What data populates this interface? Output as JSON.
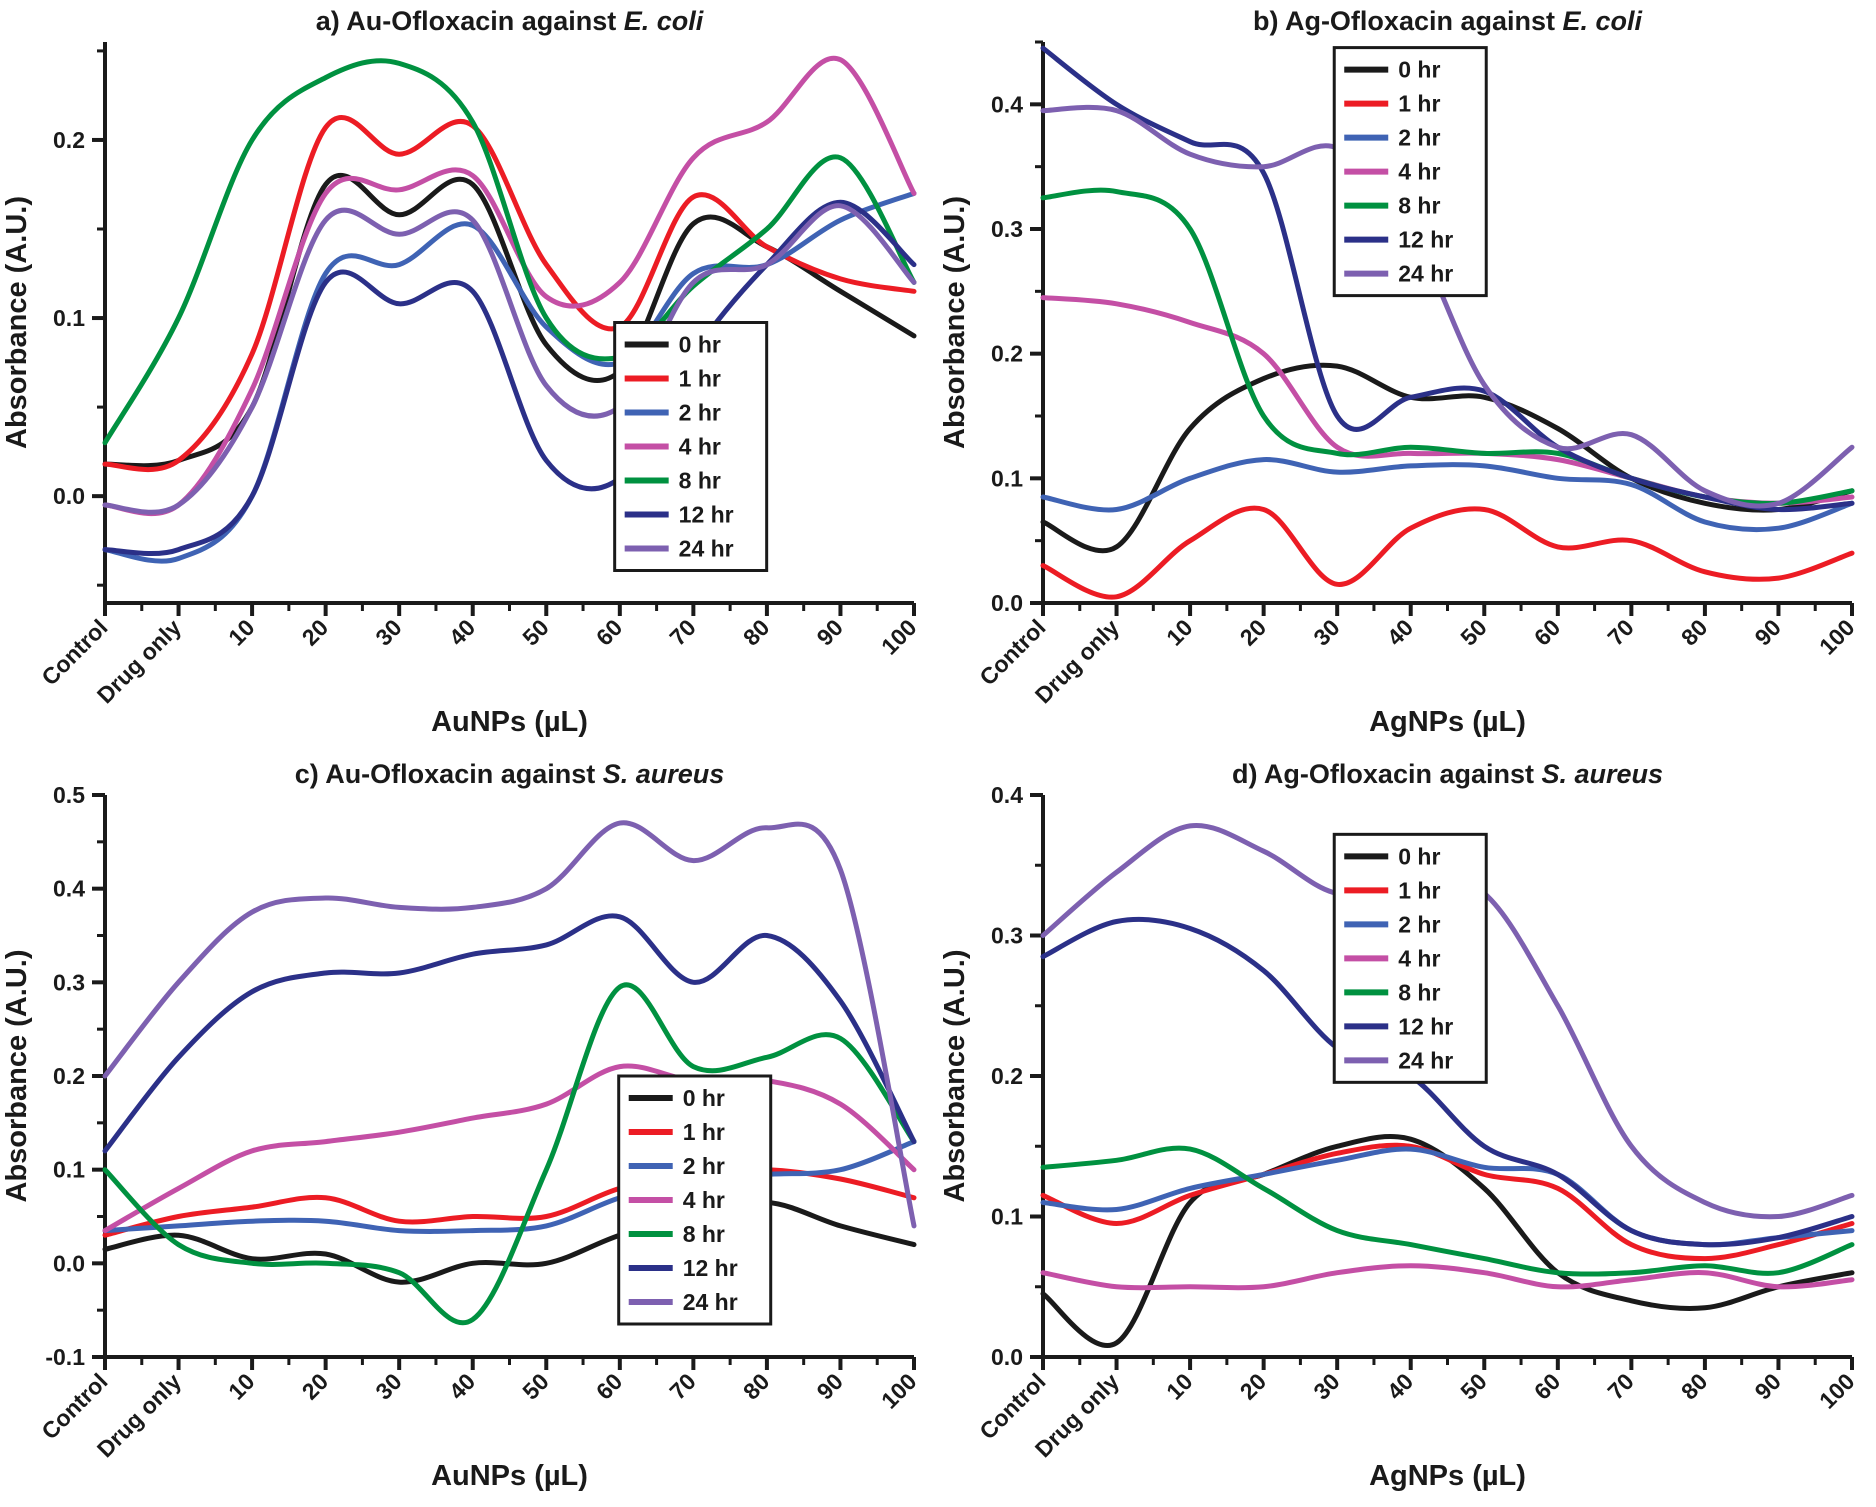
{
  "chart_data": [
    {
      "id": "a",
      "type": "line",
      "title": "a) Au-Ofloxacin against E. coli",
      "title_prefix": "a) Au-Ofloxacin against ",
      "title_italic": "E. coli",
      "xlabel": "AuNPs (µL)",
      "ylabel": "Absorbance (A.U.)",
      "categories": [
        "Control",
        "Drug only",
        "10",
        "20",
        "30",
        "40",
        "50",
        "60",
        "70",
        "80",
        "90",
        "100"
      ],
      "ylim": [
        -0.06,
        0.255
      ],
      "yticks": [
        0.0,
        0.1,
        0.2
      ],
      "legend": {
        "fx": 0.63,
        "fy": 0.5
      },
      "series": [
        {
          "name": "0 hr",
          "color": "#1a1a1a",
          "values": [
            0.018,
            0.02,
            0.05,
            0.175,
            0.158,
            0.175,
            0.085,
            0.07,
            0.153,
            0.14,
            0.115,
            0.09
          ]
        },
        {
          "name": "1 hr",
          "color": "#ec1c24",
          "values": [
            0.018,
            0.02,
            0.08,
            0.207,
            0.192,
            0.208,
            0.13,
            0.095,
            0.168,
            0.14,
            0.122,
            0.115
          ]
        },
        {
          "name": "2 hr",
          "color": "#3f63b4",
          "values": [
            -0.03,
            -0.035,
            0.0,
            0.125,
            0.13,
            0.152,
            0.095,
            0.075,
            0.125,
            0.13,
            0.155,
            0.17
          ]
        },
        {
          "name": "4 hr",
          "color": "#c44fa5",
          "values": [
            -0.005,
            -0.005,
            0.06,
            0.17,
            0.172,
            0.18,
            0.112,
            0.12,
            0.19,
            0.21,
            0.245,
            0.17
          ]
        },
        {
          "name": "8 hr",
          "color": "#009140",
          "values": [
            0.03,
            0.1,
            0.2,
            0.235,
            0.243,
            0.21,
            0.1,
            0.078,
            0.118,
            0.15,
            0.19,
            0.12
          ]
        },
        {
          "name": "12 hr",
          "color": "#2b3088",
          "values": [
            -0.03,
            -0.03,
            0.0,
            0.12,
            0.108,
            0.115,
            0.02,
            0.01,
            0.08,
            0.13,
            0.165,
            0.13
          ]
        },
        {
          "name": "24 hr",
          "color": "#7d60b0",
          "values": [
            -0.005,
            -0.005,
            0.05,
            0.155,
            0.147,
            0.155,
            0.062,
            0.05,
            0.12,
            0.13,
            0.163,
            0.12
          ]
        }
      ]
    },
    {
      "id": "b",
      "type": "line",
      "title": "b) Ag-Ofloxacin against E. coli",
      "title_prefix": "b) Ag-Ofloxacin against ",
      "title_italic": "E. coli",
      "xlabel": "AgNPs (µL)",
      "ylabel": "Absorbance (A.U.)",
      "categories": [
        "Control",
        "Drug only",
        "10",
        "20",
        "30",
        "40",
        "50",
        "60",
        "70",
        "80",
        "90",
        "100"
      ],
      "ylim": [
        0.0,
        0.45
      ],
      "yticks": [
        0.0,
        0.1,
        0.2,
        0.3,
        0.4
      ],
      "legend": {
        "fx": 0.36,
        "fy": 0.01
      },
      "series": [
        {
          "name": "0 hr",
          "color": "#1a1a1a",
          "values": [
            0.065,
            0.045,
            0.14,
            0.18,
            0.19,
            0.165,
            0.165,
            0.14,
            0.1,
            0.08,
            0.075,
            0.09
          ]
        },
        {
          "name": "1 hr",
          "color": "#ec1c24",
          "values": [
            0.03,
            0.005,
            0.05,
            0.075,
            0.015,
            0.06,
            0.075,
            0.045,
            0.05,
            0.025,
            0.02,
            0.04
          ]
        },
        {
          "name": "2 hr",
          "color": "#3f63b4",
          "values": [
            0.085,
            0.075,
            0.1,
            0.115,
            0.105,
            0.11,
            0.11,
            0.1,
            0.095,
            0.065,
            0.06,
            0.08
          ]
        },
        {
          "name": "4 hr",
          "color": "#c44fa5",
          "values": [
            0.245,
            0.24,
            0.225,
            0.2,
            0.125,
            0.12,
            0.12,
            0.115,
            0.1,
            0.085,
            0.08,
            0.085
          ]
        },
        {
          "name": "8 hr",
          "color": "#009140",
          "values": [
            0.325,
            0.33,
            0.3,
            0.15,
            0.12,
            0.125,
            0.12,
            0.12,
            0.1,
            0.085,
            0.08,
            0.09
          ]
        },
        {
          "name": "12 hr",
          "color": "#2b3088",
          "values": [
            0.445,
            0.4,
            0.37,
            0.345,
            0.15,
            0.165,
            0.17,
            0.125,
            0.1,
            0.085,
            0.075,
            0.08
          ]
        },
        {
          "name": "24 hr",
          "color": "#7d60b0",
          "values": [
            0.395,
            0.395,
            0.36,
            0.35,
            0.365,
            0.3,
            0.175,
            0.125,
            0.135,
            0.09,
            0.08,
            0.125
          ]
        }
      ]
    },
    {
      "id": "c",
      "type": "line",
      "title": "c) Au-Ofloxacin against S. aureus",
      "title_prefix": "c) Au-Ofloxacin against ",
      "title_italic": "S. aureus",
      "xlabel": "AuNPs (µL)",
      "ylabel": "Absorbance (A.U.)",
      "categories": [
        "Control",
        "Drug only",
        "10",
        "20",
        "30",
        "40",
        "50",
        "60",
        "70",
        "80",
        "90",
        "100"
      ],
      "ylim": [
        -0.1,
        0.5
      ],
      "yticks": [
        -0.1,
        0.0,
        0.1,
        0.2,
        0.3,
        0.4,
        0.5
      ],
      "legend": {
        "fx": 0.635,
        "fy": 0.5
      },
      "series": [
        {
          "name": "0 hr",
          "color": "#1a1a1a",
          "values": [
            0.015,
            0.03,
            0.005,
            0.01,
            -0.02,
            0.0,
            0.0,
            0.03,
            0.05,
            0.065,
            0.04,
            0.02
          ]
        },
        {
          "name": "1 hr",
          "color": "#ec1c24",
          "values": [
            0.03,
            0.05,
            0.06,
            0.07,
            0.045,
            0.05,
            0.05,
            0.08,
            0.095,
            0.1,
            0.09,
            0.07
          ]
        },
        {
          "name": "2 hr",
          "color": "#3f63b4",
          "values": [
            0.035,
            0.04,
            0.045,
            0.045,
            0.035,
            0.035,
            0.04,
            0.07,
            0.09,
            0.095,
            0.1,
            0.13
          ]
        },
        {
          "name": "4 hr",
          "color": "#c44fa5",
          "values": [
            0.035,
            0.08,
            0.12,
            0.13,
            0.14,
            0.155,
            0.17,
            0.21,
            0.195,
            0.195,
            0.17,
            0.1
          ]
        },
        {
          "name": "8 hr",
          "color": "#009140",
          "values": [
            0.1,
            0.02,
            0.0,
            0.0,
            -0.01,
            -0.06,
            0.1,
            0.295,
            0.21,
            0.22,
            0.24,
            0.13
          ]
        },
        {
          "name": "12 hr",
          "color": "#2b3088",
          "values": [
            0.12,
            0.22,
            0.29,
            0.31,
            0.31,
            0.33,
            0.34,
            0.37,
            0.3,
            0.35,
            0.28,
            0.13
          ]
        },
        {
          "name": "24 hr",
          "color": "#7d60b0",
          "values": [
            0.2,
            0.3,
            0.375,
            0.39,
            0.38,
            0.38,
            0.4,
            0.47,
            0.43,
            0.465,
            0.42,
            0.04
          ]
        }
      ]
    },
    {
      "id": "d",
      "type": "line",
      "title": "d) Ag-Ofloxacin against S. aureus",
      "title_prefix": "d) Ag-Ofloxacin against ",
      "title_italic": "S. aureus",
      "xlabel": "AgNPs (µL)",
      "ylabel": "Absorbance (A.U.)",
      "categories": [
        "Control",
        "Drug only",
        "10",
        "20",
        "30",
        "40",
        "50",
        "60",
        "70",
        "80",
        "90",
        "100"
      ],
      "ylim": [
        0.0,
        0.4
      ],
      "yticks": [
        0.0,
        0.1,
        0.2,
        0.3,
        0.4
      ],
      "legend": {
        "fx": 0.36,
        "fy": 0.07
      },
      "series": [
        {
          "name": "0 hr",
          "color": "#1a1a1a",
          "values": [
            0.045,
            0.01,
            0.11,
            0.13,
            0.15,
            0.155,
            0.12,
            0.06,
            0.04,
            0.035,
            0.05,
            0.06
          ]
        },
        {
          "name": "1 hr",
          "color": "#ec1c24",
          "values": [
            0.115,
            0.095,
            0.115,
            0.13,
            0.145,
            0.15,
            0.13,
            0.12,
            0.08,
            0.07,
            0.08,
            0.095
          ]
        },
        {
          "name": "2 hr",
          "color": "#3f63b4",
          "values": [
            0.11,
            0.105,
            0.12,
            0.13,
            0.14,
            0.148,
            0.135,
            0.13,
            0.09,
            0.08,
            0.085,
            0.09
          ]
        },
        {
          "name": "4 hr",
          "color": "#c44fa5",
          "values": [
            0.06,
            0.05,
            0.05,
            0.05,
            0.06,
            0.065,
            0.06,
            0.05,
            0.055,
            0.06,
            0.05,
            0.055
          ]
        },
        {
          "name": "8 hr",
          "color": "#009140",
          "values": [
            0.135,
            0.14,
            0.148,
            0.12,
            0.09,
            0.08,
            0.07,
            0.06,
            0.06,
            0.065,
            0.06,
            0.08
          ]
        },
        {
          "name": "12 hr",
          "color": "#2b3088",
          "values": [
            0.285,
            0.31,
            0.305,
            0.275,
            0.22,
            0.2,
            0.15,
            0.13,
            0.09,
            0.08,
            0.085,
            0.1
          ]
        },
        {
          "name": "24 hr",
          "color": "#7d60b0",
          "values": [
            0.3,
            0.345,
            0.378,
            0.36,
            0.33,
            0.34,
            0.33,
            0.25,
            0.15,
            0.11,
            0.1,
            0.115
          ]
        }
      ]
    }
  ]
}
